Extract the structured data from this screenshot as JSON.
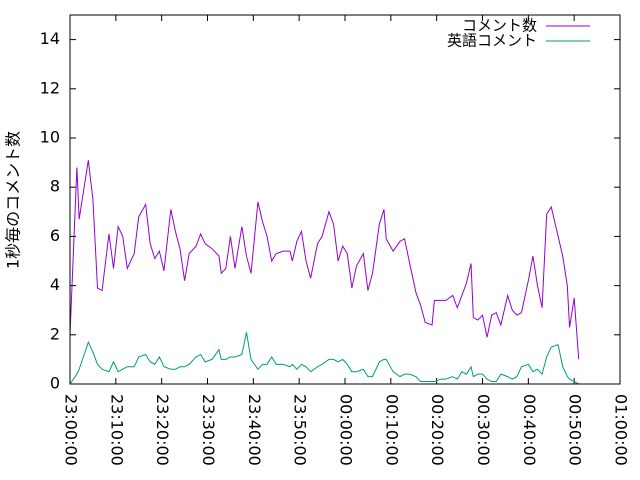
{
  "chart_data": {
    "type": "line",
    "ylabel": "1秒毎のコメント数",
    "x": [
      "23:00:00",
      "23:01:30",
      "23:02:00",
      "23:04:00",
      "23:05:00",
      "23:06:00",
      "23:07:00",
      "23:08:30",
      "23:09:30",
      "23:10:30",
      "23:11:30",
      "23:12:30",
      "23:14:00",
      "23:15:00",
      "23:16:30",
      "23:17:30",
      "23:18:30",
      "23:19:30",
      "23:20:30",
      "23:22:00",
      "23:23:00",
      "23:24:00",
      "23:25:00",
      "23:26:00",
      "23:27:30",
      "23:28:30",
      "23:29:30",
      "23:31:00",
      "23:32:30",
      "23:33:00",
      "23:34:00",
      "23:35:00",
      "23:36:00",
      "23:37:30",
      "23:38:30",
      "23:39:30",
      "23:41:00",
      "23:42:00",
      "23:43:00",
      "23:44:00",
      "23:45:00",
      "23:46:30",
      "23:48:00",
      "23:48:30",
      "23:49:30",
      "23:50:30",
      "23:51:30",
      "23:52:30",
      "23:54:00",
      "23:55:00",
      "23:56:30",
      "23:57:30",
      "23:58:30",
      "23:59:30",
      "00:00:30",
      "00:01:30",
      "00:02:30",
      "00:04:00",
      "00:05:00",
      "00:06:00",
      "00:07:30",
      "00:08:30",
      "00:09:00",
      "00:10:30",
      "00:12:00",
      "00:13:00",
      "00:14:00",
      "00:15:30",
      "00:16:30",
      "00:17:30",
      "00:19:00",
      "00:19:30",
      "00:21:00",
      "00:22:00",
      "00:23:30",
      "00:24:30",
      "00:25:30",
      "00:26:30",
      "00:27:30",
      "00:28:00",
      "00:29:00",
      "00:30:00",
      "00:31:00",
      "00:32:00",
      "00:33:00",
      "00:34:00",
      "00:35:30",
      "00:36:30",
      "00:37:30",
      "00:38:30",
      "00:40:00",
      "00:41:00",
      "00:42:00",
      "00:43:00",
      "00:44:00",
      "00:45:00",
      "00:46:30",
      "00:47:30",
      "00:48:30",
      "00:49:00",
      "00:50:00",
      "00:51:00"
    ],
    "series": [
      {
        "name": "コメント数",
        "color": "#9400d3",
        "values": [
          2.0,
          8.8,
          6.7,
          9.1,
          7.5,
          3.9,
          3.8,
          6.1,
          4.7,
          6.4,
          6.0,
          4.7,
          5.3,
          6.8,
          7.3,
          5.7,
          5.1,
          5.4,
          4.6,
          7.1,
          6.2,
          5.5,
          4.2,
          5.3,
          5.6,
          6.1,
          5.7,
          5.5,
          5.2,
          4.5,
          4.7,
          6.0,
          4.7,
          6.4,
          5.2,
          4.5,
          7.4,
          6.6,
          6.0,
          5.0,
          5.3,
          5.4,
          5.4,
          5.0,
          5.8,
          6.2,
          5.0,
          4.3,
          5.7,
          6.0,
          7.0,
          6.5,
          5.0,
          5.6,
          5.3,
          3.9,
          4.8,
          5.3,
          3.8,
          4.5,
          6.5,
          7.1,
          5.9,
          5.4,
          5.8,
          5.9,
          5.0,
          3.7,
          3.2,
          2.5,
          2.4,
          3.4,
          3.4,
          3.4,
          3.6,
          3.1,
          3.6,
          4.1,
          4.9,
          2.7,
          2.6,
          2.8,
          1.9,
          2.8,
          2.9,
          2.4,
          3.6,
          3.0,
          2.8,
          2.9,
          4.2,
          5.2,
          4.0,
          3.1,
          6.9,
          7.2,
          6.0,
          5.2,
          4.0,
          2.3,
          3.5,
          1.0
        ]
      },
      {
        "name": "英語コメント",
        "color": "#009e73",
        "values": [
          0.0,
          0.4,
          0.6,
          1.7,
          1.3,
          0.8,
          0.6,
          0.5,
          0.9,
          0.5,
          0.6,
          0.7,
          0.7,
          1.1,
          1.2,
          0.9,
          0.8,
          1.1,
          0.7,
          0.6,
          0.6,
          0.7,
          0.7,
          0.8,
          1.1,
          1.2,
          0.9,
          1.0,
          1.4,
          1.0,
          1.0,
          1.1,
          1.1,
          1.2,
          2.1,
          1.0,
          0.6,
          0.8,
          0.8,
          1.1,
          0.8,
          0.8,
          0.7,
          0.8,
          0.6,
          0.8,
          0.7,
          0.5,
          0.7,
          0.8,
          1.0,
          1.0,
          0.9,
          1.0,
          0.8,
          0.5,
          0.5,
          0.6,
          0.3,
          0.3,
          0.9,
          1.0,
          1.0,
          0.5,
          0.3,
          0.4,
          0.4,
          0.3,
          0.1,
          0.1,
          0.1,
          0.1,
          0.2,
          0.2,
          0.3,
          0.2,
          0.5,
          0.4,
          0.7,
          0.3,
          0.4,
          0.4,
          0.2,
          0.1,
          0.1,
          0.4,
          0.3,
          0.2,
          0.3,
          0.7,
          0.8,
          0.5,
          0.6,
          0.4,
          1.1,
          1.5,
          1.6,
          0.7,
          0.3,
          0.2,
          0.1,
          0.0
        ]
      }
    ],
    "xlim": [
      "23:00:00",
      "01:00:00"
    ],
    "xticks": [
      "23:00:00",
      "23:10:00",
      "23:20:00",
      "23:30:00",
      "23:40:00",
      "23:50:00",
      "00:00:00",
      "00:10:00",
      "00:20:00",
      "00:30:00",
      "00:40:00",
      "00:50:00",
      "01:00:00"
    ],
    "ylim": [
      0,
      15
    ],
    "yticks": [
      0,
      2,
      4,
      6,
      8,
      10,
      12,
      14
    ],
    "grid": false,
    "legend": "top-right"
  }
}
